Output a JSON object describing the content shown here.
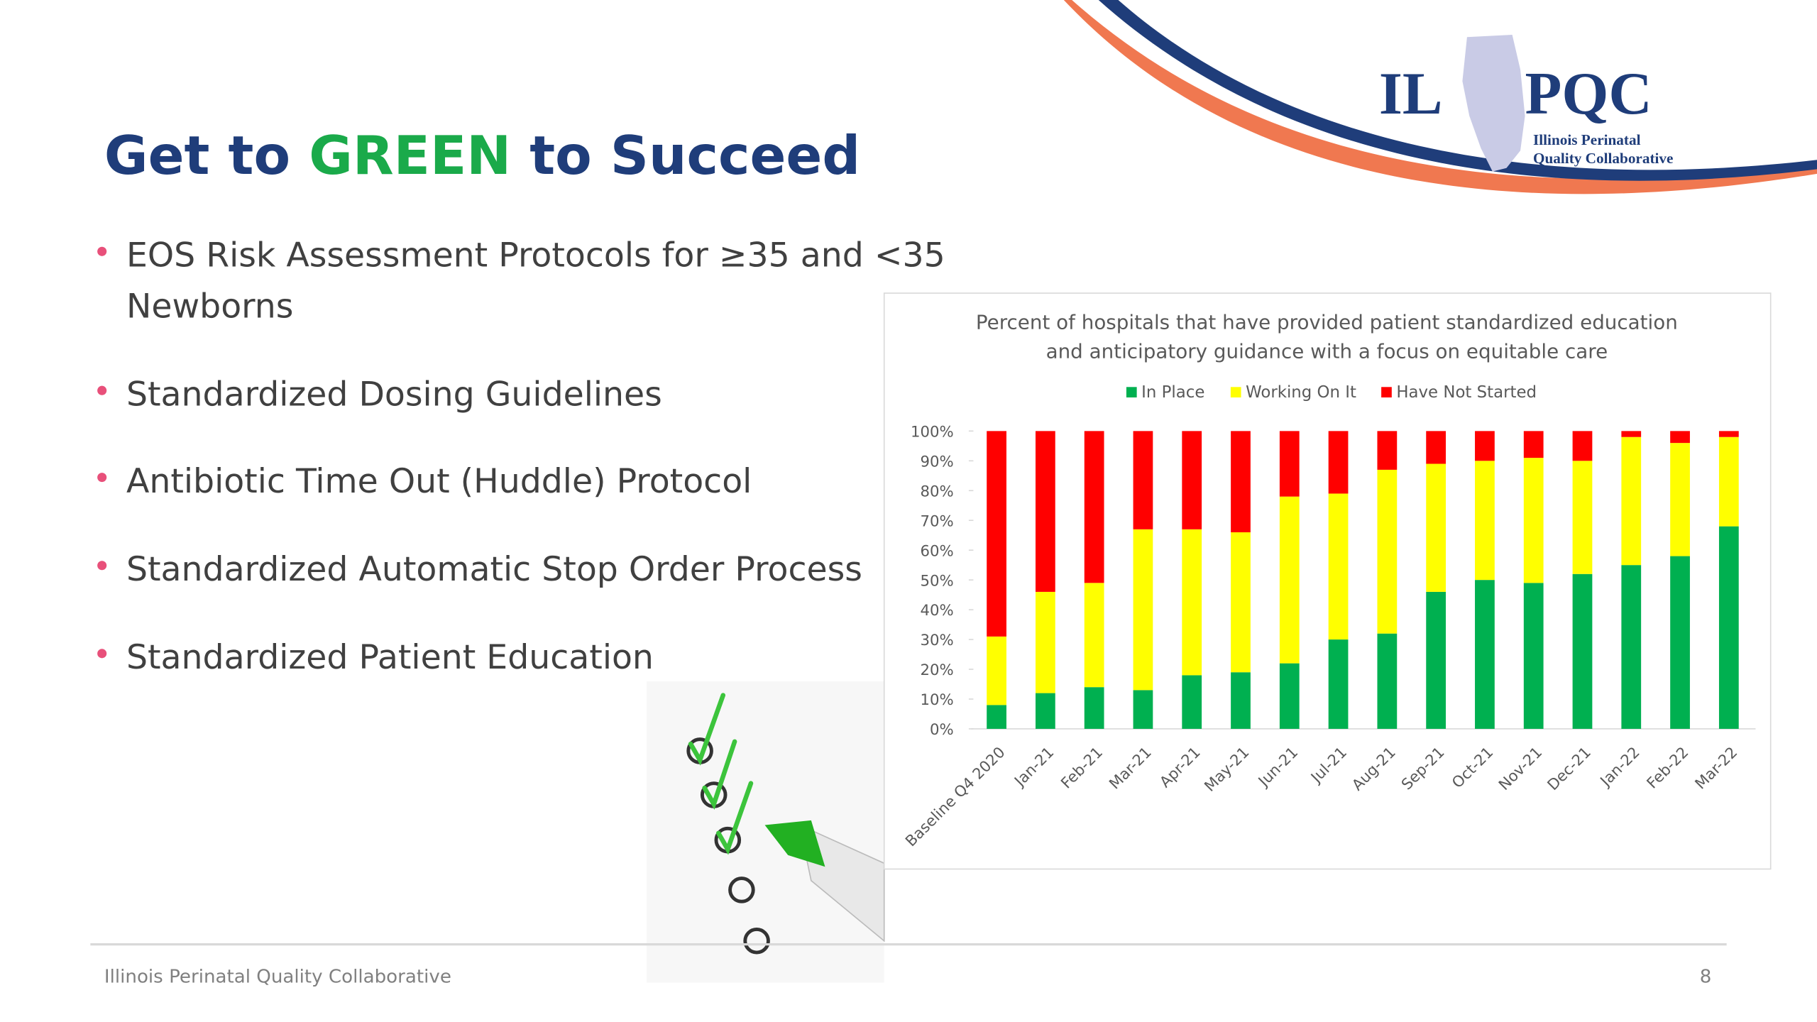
{
  "slide": {
    "title": [
      "Get to",
      "GREEN",
      "to Succeed"
    ],
    "logo": {
      "left": "IL",
      "right": "PQC",
      "line1": "Illinois Perinatal",
      "line2": "Quality Collaborative"
    },
    "bullets": [
      [
        "EOS Risk Assessment Protocols for ≥35 and <35",
        "Newborns"
      ],
      [
        "Standardized Dosing Guidelines"
      ],
      [
        "Antibiotic Time Out (Huddle) Protocol"
      ],
      [
        "Standardized Automatic Stop Order Process"
      ],
      [
        "Standardized Patient Education"
      ]
    ],
    "footer": "Illinois Perinatal Quality Collaborative",
    "page_number": "8"
  },
  "chart_data": {
    "type": "stacked_bar",
    "title": [
      "Percent of hospitals that have provided patient standardized education",
      "and anticipatory guidance with a focus on equitable care"
    ],
    "categories": [
      "Baseline Q4 2020",
      "Jan-21",
      "Feb-21",
      "Mar-21",
      "Apr-21",
      "May-21",
      "Jun-21",
      "Jul-21",
      "Aug-21",
      "Sep-21",
      "Oct-21",
      "Nov-21",
      "Dec-21",
      "Jan-22",
      "Feb-22",
      "Mar-22"
    ],
    "series": [
      {
        "name": "In Place",
        "color": "#00b050",
        "values": [
          8,
          12,
          14,
          13,
          18,
          19,
          22,
          30,
          32,
          46,
          50,
          49,
          52,
          55,
          58,
          68
        ]
      },
      {
        "name": "Working On It",
        "color": "#ffff00",
        "values": [
          23,
          34,
          35,
          54,
          49,
          47,
          56,
          49,
          55,
          43,
          40,
          42,
          38,
          43,
          38,
          30
        ]
      },
      {
        "name": "Have Not Started",
        "color": "#ff0000",
        "values": [
          69,
          54,
          51,
          33,
          33,
          34,
          22,
          21,
          13,
          11,
          10,
          9,
          10,
          2,
          4,
          2
        ]
      }
    ],
    "ylim": [
      0,
      100
    ],
    "yticks": [
      {
        "value": 0,
        "label": "0%"
      },
      {
        "value": 10,
        "label": "10%"
      },
      {
        "value": 20,
        "label": "20%"
      },
      {
        "value": 30,
        "label": "30%"
      },
      {
        "value": 40,
        "label": "40%"
      },
      {
        "value": 50,
        "label": "50%"
      },
      {
        "value": 60,
        "label": "60%"
      },
      {
        "value": 70,
        "label": "70%"
      },
      {
        "value": 80,
        "label": "80%"
      },
      {
        "value": 90,
        "label": "90%"
      },
      {
        "value": 100,
        "label": "100%"
      }
    ],
    "legend": "top"
  }
}
